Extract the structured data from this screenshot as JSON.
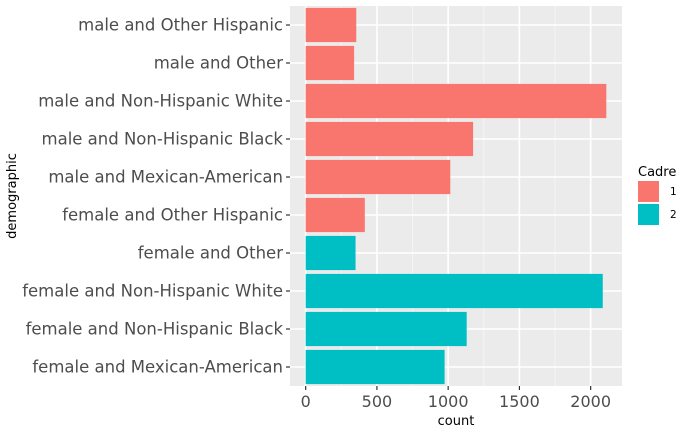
{
  "chart_data": {
    "type": "bar",
    "orientation": "horizontal",
    "categories": [
      "female and Mexican-American",
      "female and Non-Hispanic Black",
      "female and Non-Hispanic White",
      "female and Other",
      "female and Other Hispanic",
      "male and Mexican-American",
      "male and Non-Hispanic Black",
      "male and Non-Hispanic White",
      "male and Other",
      "male and Other Hispanic"
    ],
    "values": [
      975,
      1130,
      2085,
      350,
      415,
      1015,
      1175,
      2110,
      340,
      355
    ],
    "group": [
      "2",
      "2",
      "2",
      "2",
      "1",
      "1",
      "1",
      "1",
      "1",
      "1"
    ],
    "xlabel": "count",
    "ylabel": "demographic",
    "xlim": [
      -110,
      2220
    ],
    "xticks": [
      0,
      500,
      1000,
      1500,
      2000
    ],
    "xtick_labels": [
      "0",
      "500",
      "1000",
      "1500",
      "2000"
    ],
    "grid": true,
    "legend": {
      "title": "Cadre",
      "position": "right",
      "entries": [
        {
          "label": "1",
          "color": "#F8766D"
        },
        {
          "label": "2",
          "color": "#00BFC4"
        }
      ]
    }
  },
  "colors": {
    "panel": "#EBEBEB",
    "grid_major": "#FFFFFF",
    "grid_minor": "#F4F4F4",
    "group_1": "#F8766D",
    "group_2": "#00BFC4"
  }
}
